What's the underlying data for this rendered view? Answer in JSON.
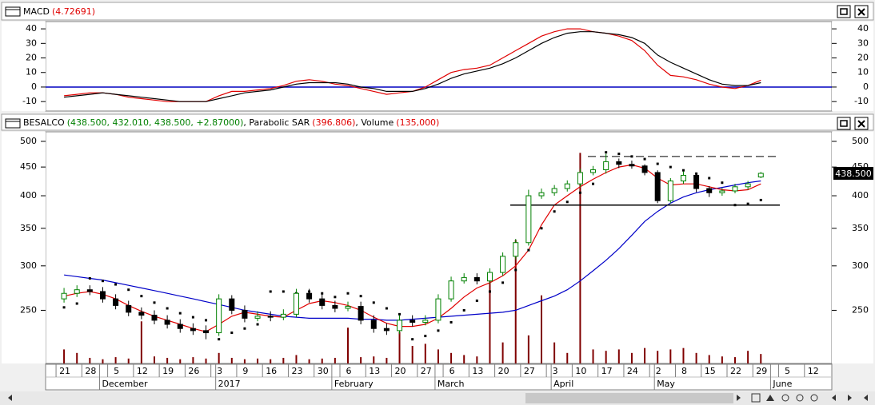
{
  "chart_data": [
    {
      "type": "line",
      "title_parts": [
        {
          "text": "MACD",
          "color": "#000000"
        },
        {
          "text": "(4.72691)",
          "color": "#e00000"
        }
      ],
      "ylim": [
        -16.5,
        45
      ],
      "yticks": [
        40,
        30,
        20,
        10,
        0,
        -10
      ],
      "reference_lines": [
        {
          "value": 0,
          "color": "#0000c0",
          "style": "solid"
        }
      ],
      "series": [
        {
          "color": "#e00000",
          "values": [
            -6,
            -5,
            -4,
            -4,
            -5,
            -7,
            -8,
            -9,
            -10,
            -10,
            -10,
            -10,
            -6,
            -3,
            -3,
            -2,
            -1,
            1,
            4,
            5,
            4,
            2,
            1,
            -1,
            -3,
            -5,
            -4,
            -3,
            0,
            5,
            10,
            12,
            13,
            15,
            20,
            25,
            30,
            35,
            38,
            40,
            40,
            38,
            37,
            35,
            32,
            25,
            15,
            8,
            7,
            5,
            2,
            0,
            -1,
            1,
            4.7,
            null,
            null,
            null,
            null,
            null
          ]
        },
        {
          "color": "#000000",
          "values": [
            -7,
            -6,
            -5,
            -4,
            -5,
            -6,
            -7,
            -8,
            -9,
            -10,
            -10,
            -10,
            -8,
            -6,
            -4,
            -3,
            -2,
            0,
            2,
            3,
            3,
            3,
            2,
            0,
            -1,
            -3,
            -3,
            -3,
            -1,
            2,
            6,
            9,
            11,
            13,
            16,
            20,
            25,
            30,
            34,
            37,
            38,
            38,
            37,
            36,
            34,
            30,
            22,
            17,
            13,
            9,
            5,
            2,
            1,
            1,
            3,
            null,
            null,
            null,
            null,
            null
          ]
        }
      ]
    },
    {
      "type": "candlestick",
      "title_parts": [
        {
          "text": "BESALCO",
          "color": "#000000"
        },
        {
          "text": "(438.500, 432.010, 438.500, +2.87000)",
          "color": "#008000"
        },
        {
          "text": ", Parabolic SAR",
          "color": "#000000"
        },
        {
          "text": "(396.806)",
          "color": "#e00000"
        },
        {
          "text": ", Volume",
          "color": "#000000"
        },
        {
          "text": "(135,000)",
          "color": "#e00000"
        }
      ],
      "log_scale": true,
      "ylim": [
        201,
        520
      ],
      "yticks": [
        500,
        450,
        400,
        350,
        300,
        250
      ],
      "categories": [
        "21",
        null,
        "28",
        null,
        "5",
        null,
        "12",
        null,
        "19",
        null,
        "26",
        null,
        "3",
        null,
        "9",
        null,
        "16",
        null,
        "23",
        null,
        "30",
        null,
        "6",
        null,
        "13",
        null,
        "20",
        null,
        "27",
        null,
        "6",
        null,
        "13",
        null,
        "20",
        null,
        "27",
        null,
        "3",
        null,
        "10",
        null,
        "17",
        null,
        "24",
        null,
        "2",
        null,
        "8",
        null,
        "15",
        null,
        "22",
        null,
        "29",
        null,
        "5",
        null,
        "12",
        null
      ],
      "month_categories": [
        null,
        null,
        null,
        "December",
        null,
        null,
        null,
        null,
        null,
        null,
        null,
        null,
        "2017",
        null,
        null,
        null,
        null,
        null,
        null,
        null,
        null,
        "February",
        null,
        null,
        null,
        null,
        null,
        null,
        null,
        "March",
        null,
        null,
        null,
        null,
        null,
        null,
        null,
        null,
        "April",
        null,
        null,
        null,
        null,
        null,
        null,
        null,
        "May",
        null,
        null,
        null,
        null,
        null,
        null,
        null,
        null,
        "June",
        null,
        null,
        null,
        null
      ],
      "up_color": "#008000",
      "down_color": "#000000",
      "open": [
        262,
        268,
        272,
        270,
        262,
        255,
        248,
        245,
        240,
        236,
        232,
        230,
        228,
        262,
        250,
        242,
        244,
        243,
        246,
        268,
        262,
        255,
        252,
        254,
        240,
        232,
        230,
        240,
        238,
        240,
        262,
        282,
        286,
        282,
        292,
        312,
        330,
        400,
        405,
        412,
        420,
        440,
        445,
        460,
        455,
        452,
        440,
        392,
        425,
        435,
        412,
        405,
        408,
        415,
        432,
        null,
        null,
        null,
        null,
        null
      ],
      "high": [
        274,
        277,
        277,
        275,
        267,
        260,
        253,
        250,
        245,
        241,
        237,
        235,
        267,
        266,
        255,
        249,
        249,
        251,
        273,
        273,
        267,
        260,
        259,
        259,
        245,
        237,
        245,
        245,
        245,
        267,
        287,
        291,
        291,
        297,
        317,
        335,
        410,
        412,
        418,
        426,
        447,
        452,
        475,
        466,
        462,
        455,
        444,
        430,
        442,
        440,
        416,
        413,
        420,
        425,
        441,
        null,
        null,
        null,
        null,
        null
      ],
      "low": [
        258,
        264,
        266,
        258,
        251,
        244,
        241,
        236,
        232,
        228,
        226,
        222,
        225,
        246,
        238,
        239,
        239,
        240,
        243,
        258,
        251,
        248,
        249,
        236,
        228,
        226,
        227,
        234,
        235,
        237,
        259,
        279,
        278,
        279,
        288,
        308,
        326,
        395,
        400,
        407,
        415,
        435,
        438,
        448,
        447,
        435,
        388,
        388,
        420,
        406,
        398,
        400,
        404,
        410,
        430,
        null,
        null,
        null,
        null,
        null
      ],
      "close": [
        268,
        272,
        270,
        262,
        255,
        248,
        245,
        240,
        236,
        232,
        230,
        228,
        262,
        250,
        242,
        244,
        243,
        246,
        268,
        262,
        255,
        252,
        254,
        240,
        232,
        230,
        240,
        238,
        240,
        262,
        282,
        286,
        282,
        292,
        312,
        330,
        400,
        405,
        412,
        420,
        440,
        445,
        460,
        455,
        452,
        440,
        392,
        425,
        435,
        412,
        405,
        408,
        415,
        420,
        438.5,
        null,
        null,
        null,
        null,
        null
      ],
      "last_value_label": "438.500",
      "overlays": [
        {
          "type": "line",
          "color": "#0000c8",
          "values": [
            289,
            287,
            285,
            283,
            280,
            277,
            274,
            271,
            268,
            265,
            262,
            259,
            256,
            253,
            250,
            248,
            246,
            244,
            243,
            242,
            242,
            242,
            242,
            241,
            241,
            240,
            240,
            241,
            242,
            243,
            244,
            245,
            246,
            247,
            248,
            250,
            255,
            260,
            265,
            272,
            282,
            294,
            307,
            322,
            340,
            360,
            375,
            388,
            398,
            405,
            410,
            414,
            418,
            422,
            425,
            null,
            null,
            null,
            null,
            null
          ]
        },
        {
          "type": "line",
          "color": "#e00000",
          "values": [
            265,
            268,
            270,
            267,
            262,
            255,
            249,
            244,
            240,
            236,
            232,
            229,
            236,
            244,
            248,
            246,
            244,
            243,
            250,
            257,
            260,
            258,
            255,
            250,
            243,
            237,
            234,
            234,
            236,
            242,
            252,
            264,
            274,
            280,
            288,
            300,
            320,
            355,
            385,
            400,
            415,
            428,
            440,
            450,
            454,
            448,
            430,
            418,
            420,
            420,
            415,
            410,
            408,
            410,
            420,
            null,
            null,
            null,
            null,
            null
          ]
        },
        {
          "type": "scatter",
          "color": "#000000",
          "values": [
            253,
            257,
            285,
            282,
            278,
            272,
            265,
            258,
            252,
            247,
            243,
            240,
            222,
            228,
            232,
            236,
            270,
            270,
            268,
            270,
            268,
            264,
            268,
            265,
            258,
            252,
            246,
            222,
            225,
            230,
            238,
            250,
            260,
            270,
            280,
            295,
            320,
            350,
            375,
            390,
            405,
            420,
            478,
            475,
            470,
            465,
            456,
            450,
            444,
            438,
            430,
            422,
            385,
            387,
            393,
            null,
            null,
            null,
            null,
            null
          ]
        }
      ],
      "volume": {
        "color": "#800000",
        "y2lim": [
          0,
          3300000
        ],
        "values": [
          200000,
          150000,
          80000,
          60000,
          90000,
          70000,
          600000,
          100000,
          80000,
          60000,
          90000,
          70000,
          150000,
          80000,
          60000,
          70000,
          60000,
          80000,
          120000,
          60000,
          70000,
          80000,
          510000,
          90000,
          100000,
          80000,
          450000,
          250000,
          280000,
          200000,
          150000,
          120000,
          100000,
          1250000,
          300000,
          1760000,
          400000,
          970000,
          300000,
          150000,
          3000000,
          200000,
          180000,
          200000,
          150000,
          220000,
          180000,
          200000,
          220000,
          150000,
          120000,
          100000,
          90000,
          180000,
          135000,
          null,
          null,
          null,
          null,
          null
        ]
      },
      "reference_lines": [
        {
          "value": 470,
          "color": "#000000",
          "style": "dashed"
        },
        {
          "value": 385,
          "color": "#000000",
          "style": "solid"
        }
      ]
    }
  ]
}
